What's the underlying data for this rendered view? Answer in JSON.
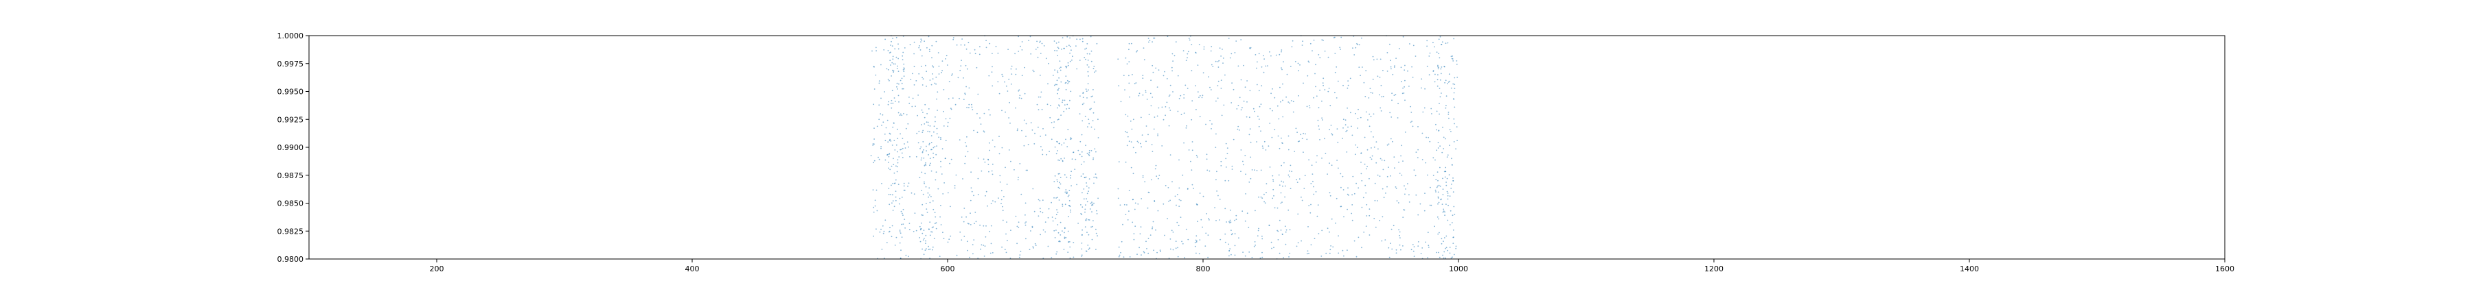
{
  "chart_data": {
    "type": "scatter",
    "title": "",
    "xlabel": "",
    "ylabel": "",
    "xlim": [
      100,
      1600
    ],
    "ylim": [
      0.98,
      1.0
    ],
    "x_ticks": [
      200,
      400,
      600,
      800,
      1000,
      1200,
      1400,
      1600
    ],
    "x_tick_labels": [
      "200",
      "400",
      "600",
      "800",
      "1000",
      "1200",
      "1400",
      "1600"
    ],
    "y_ticks": [
      0.98,
      0.9825,
      0.985,
      0.9875,
      0.99,
      0.9925,
      0.995,
      0.9975,
      1.0
    ],
    "y_tick_labels": [
      "0.9800",
      "0.9825",
      "0.9850",
      "0.9875",
      "0.9900",
      "0.9925",
      "0.9950",
      "0.9975",
      "1.0000"
    ],
    "grid": false,
    "legend": false,
    "colors": {
      "points": "#1f77b4",
      "axes": "#000000",
      "background": "#ffffff"
    },
    "series": [
      {
        "x_range": [
          540,
          1000
        ],
        "gap_x_range": [
          718,
          733
        ],
        "y_range": [
          0.98,
          1.0
        ],
        "approx_points": 2200,
        "values_representation": "dense cloud of tiny markers uniformly filling x 540–718 and 733–1000 across the full visible y range; denser columns near x≈560, 585, 690, 712 and 990"
      }
    ]
  }
}
